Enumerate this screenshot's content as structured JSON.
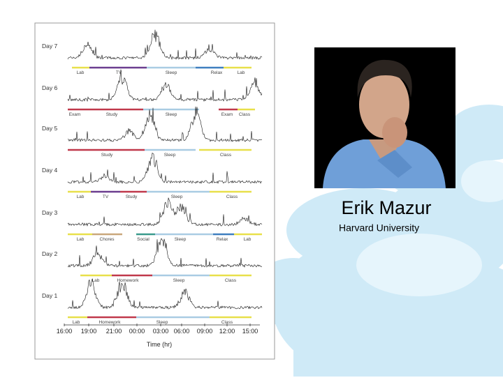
{
  "figure": {
    "days": [
      {
        "label": "Day 7",
        "activities": [
          "Lab",
          "TV",
          "Sleep",
          "Relax",
          "Lab"
        ]
      },
      {
        "label": "Day 6",
        "activities": [
          "Exam",
          "Study",
          "Sleep",
          "Exam",
          "Class"
        ]
      },
      {
        "label": "Day 5",
        "activities": [
          "Study",
          "Sleep",
          "Class"
        ]
      },
      {
        "label": "Day 4",
        "activities": [
          "Lab",
          "TV",
          "Study",
          "Sleep",
          "Class"
        ]
      },
      {
        "label": "Day 3",
        "activities": [
          "Lab",
          "Chores",
          "Social",
          "Sleep",
          "Relax",
          "Lab"
        ]
      },
      {
        "label": "Day 2",
        "activities": [
          "Lab",
          "Homework",
          "Sleep",
          "Class"
        ]
      },
      {
        "label": "Day 1",
        "activities": [
          "Lab",
          "Homework",
          "Sleep",
          "Class"
        ]
      }
    ],
    "x_ticks": [
      "16:00",
      "19:00",
      "21:00",
      "00:00",
      "03:00",
      "06:00",
      "09:00",
      "12:00",
      "15:00"
    ],
    "x_label": "Time (hr)"
  },
  "person": {
    "name": "Erik Mazur",
    "affiliation": "Harvard University"
  }
}
